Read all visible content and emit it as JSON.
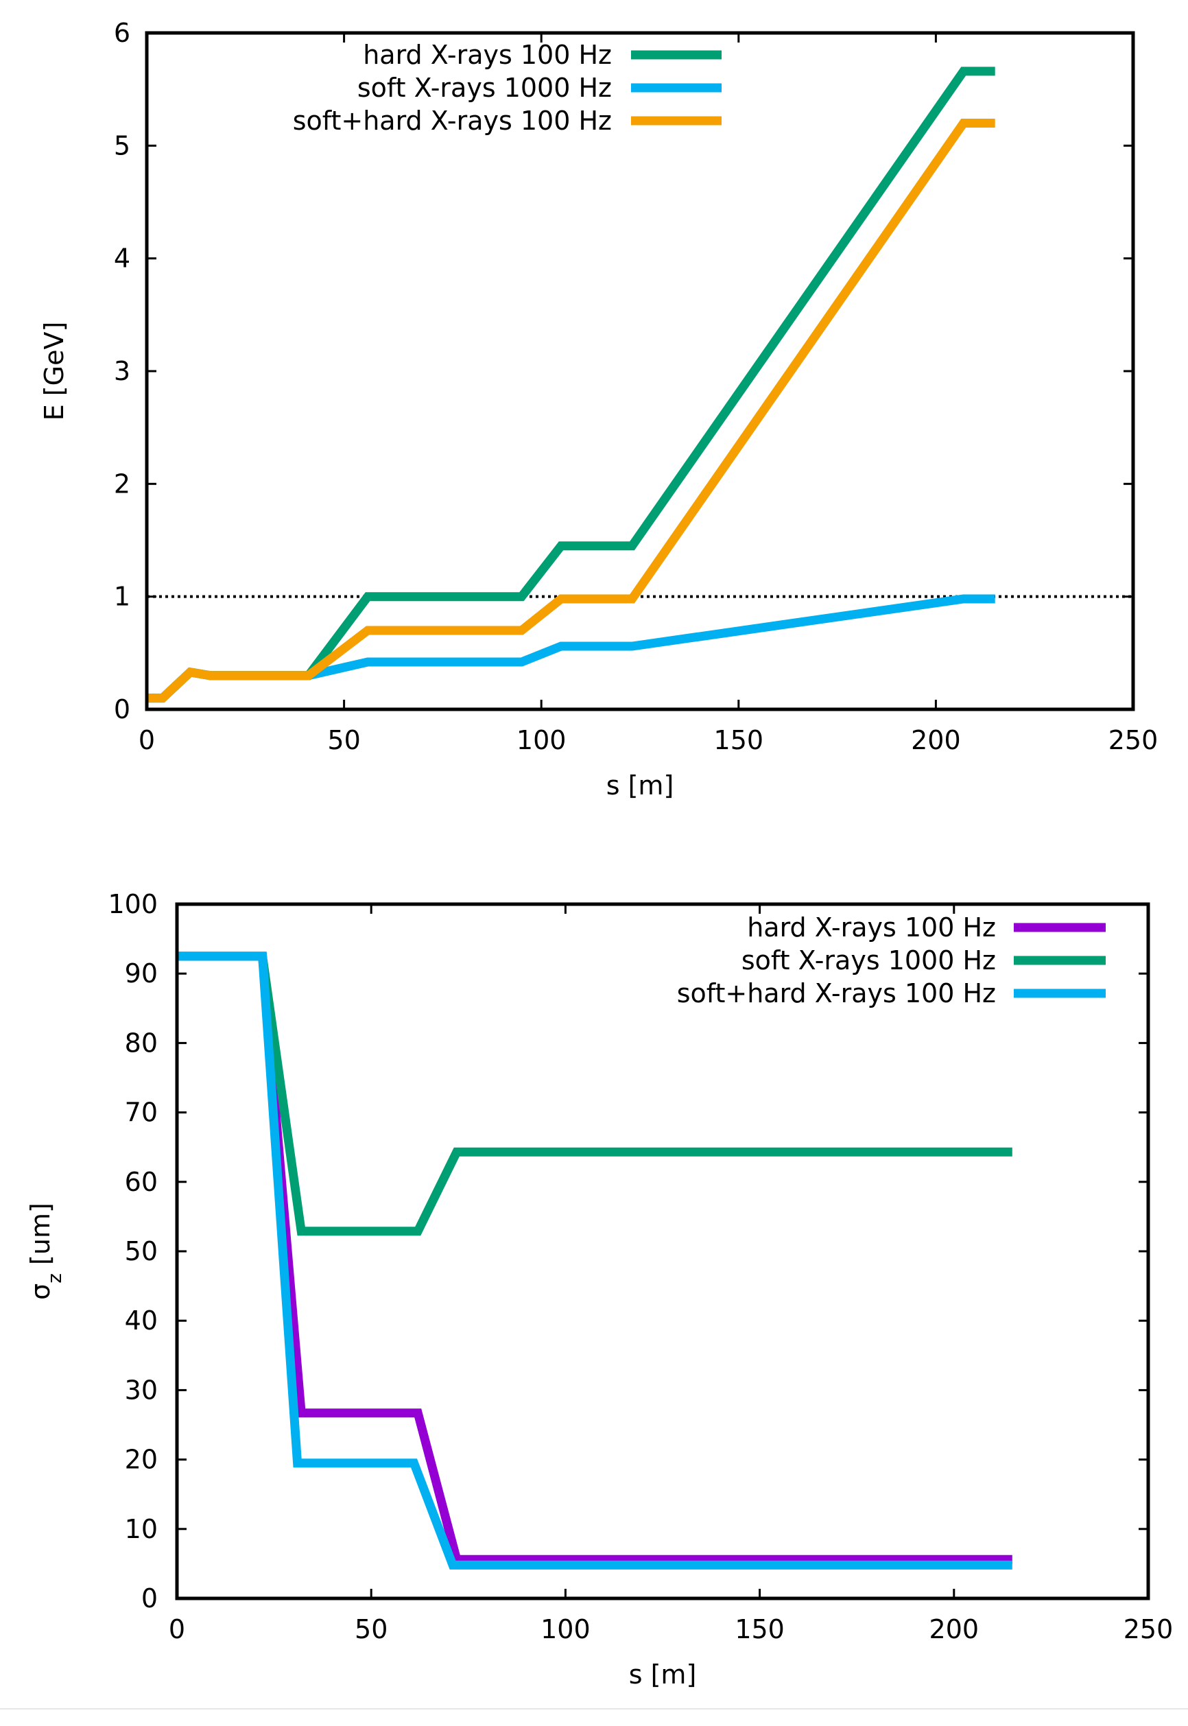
{
  "chart_data": [
    {
      "type": "line",
      "title": "",
      "xlabel": "s [m]",
      "ylabel": "E [GeV]",
      "xlim": [
        0,
        250
      ],
      "ylim": [
        0,
        6
      ],
      "xticks": [
        "0",
        "50",
        "100",
        "150",
        "200",
        "250"
      ],
      "yticks": [
        "0",
        "1",
        "2",
        "3",
        "4",
        "5",
        "6"
      ],
      "grid": false,
      "legend_position": "top-right",
      "reference_line": {
        "y": 1.0,
        "style": "dotted",
        "color": "#000000"
      },
      "series": [
        {
          "name": "hard X-rays 100 Hz",
          "color": "#009e73",
          "x": [
            0,
            4,
            11,
            16,
            25,
            35,
            41,
            56,
            95,
            105,
            123,
            207,
            215
          ],
          "y": [
            0.1,
            0.1,
            0.33,
            0.3,
            0.3,
            0.3,
            0.3,
            1.0,
            1.0,
            1.45,
            1.45,
            5.66,
            5.66
          ]
        },
        {
          "name": "soft X-rays 1000 Hz",
          "color": "#00b0f0",
          "x": [
            0,
            4,
            11,
            16,
            25,
            35,
            41,
            56,
            95,
            105,
            123,
            207,
            215
          ],
          "y": [
            0.1,
            0.1,
            0.33,
            0.3,
            0.3,
            0.3,
            0.3,
            0.42,
            0.42,
            0.56,
            0.56,
            0.98,
            0.98
          ]
        },
        {
          "name": "soft+hard X-rays 100 Hz",
          "color": "#f5a000",
          "x": [
            0,
            4,
            11,
            16,
            25,
            35,
            41,
            56,
            95,
            105,
            123,
            207,
            215
          ],
          "y": [
            0.1,
            0.1,
            0.33,
            0.3,
            0.3,
            0.3,
            0.3,
            0.7,
            0.7,
            0.98,
            0.98,
            5.2,
            5.2
          ]
        }
      ]
    },
    {
      "type": "line",
      "title": "",
      "xlabel": "s [m]",
      "ylabel": "σz [um]",
      "ylabel_main": "σ",
      "ylabel_sub": "z",
      "ylabel_unit": " [um]",
      "xlim": [
        0,
        250
      ],
      "ylim": [
        0,
        100
      ],
      "xticks": [
        "0",
        "50",
        "100",
        "150",
        "200",
        "250"
      ],
      "yticks": [
        "0",
        "10",
        "20",
        "30",
        "40",
        "50",
        "60",
        "70",
        "80",
        "90",
        "100"
      ],
      "grid": false,
      "legend_position": "top-right",
      "series": [
        {
          "name": "hard X-rays 100 Hz",
          "color": "#9400d3",
          "x": [
            0,
            22,
            32,
            62,
            72,
            215
          ],
          "y": [
            92.5,
            92.5,
            26.7,
            26.7,
            5.6,
            5.6
          ]
        },
        {
          "name": "soft X-rays 1000 Hz",
          "color": "#009e73",
          "x": [
            0,
            22,
            32,
            62,
            72,
            215
          ],
          "y": [
            92.5,
            92.5,
            52.9,
            52.9,
            64.3,
            64.3
          ]
        },
        {
          "name": "soft+hard X-rays 100 Hz",
          "color": "#00b0f0",
          "x": [
            0,
            22,
            31,
            61,
            71,
            215
          ],
          "y": [
            92.5,
            92.5,
            19.5,
            19.5,
            4.8,
            4.8
          ]
        }
      ]
    }
  ]
}
